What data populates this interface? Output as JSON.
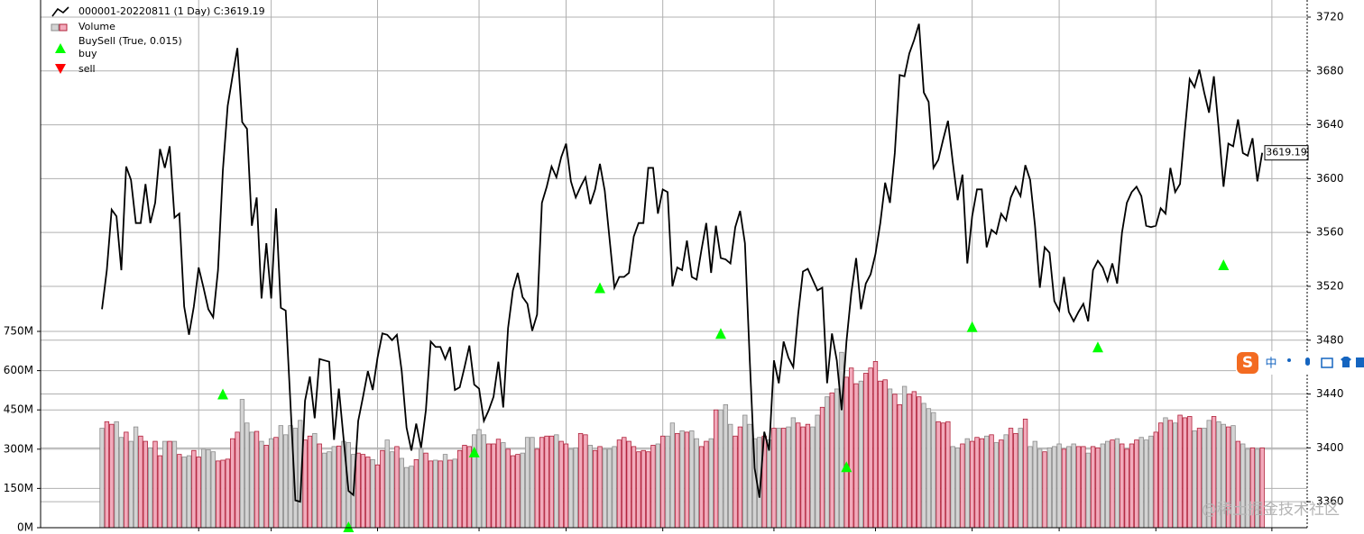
{
  "chart_data": {
    "type": "line",
    "legend_title": "BuySell (True, 0.015)",
    "xlim": [
      -12.7,
      249.3
    ],
    "xticks": [
      20,
      35,
      57,
      78,
      96,
      116,
      139,
      160,
      180,
      198,
      218,
      242
    ],
    "ylim": [
      0,
      2016
    ],
    "yticks": [
      {
        "value": 0,
        "label": "0M"
      },
      {
        "value": 150,
        "label": "150M"
      },
      {
        "value": 300,
        "label": "300M"
      },
      {
        "value": 450,
        "label": "450M"
      },
      {
        "value": 600,
        "label": "600M"
      },
      {
        "value": 750,
        "label": "750M"
      }
    ],
    "y2lim": [
      3340.7,
      3732.7
    ],
    "y2ticks": [
      3360,
      3400,
      3440,
      3480,
      3520,
      3560,
      3600,
      3640,
      3680,
      3720
    ],
    "grid": true,
    "series": [
      {
        "name": "000001-20220811 (1 Day) C:3619.19",
        "type": "line",
        "axis": "y2",
        "color": "#000000",
        "values": [
          3503,
          3532,
          3577,
          3572,
          3532,
          3609,
          3599,
          3567,
          3567,
          3596,
          3567,
          3582,
          3622,
          3608,
          3624,
          3571,
          3574,
          3505,
          3484,
          3505,
          3534,
          3519,
          3503,
          3497,
          3532,
          3606,
          3654,
          3676,
          3697,
          3642,
          3637,
          3565,
          3586,
          3511,
          3552,
          3511,
          3578,
          3504,
          3502,
          3432,
          3361,
          3360,
          3435,
          3453,
          3422,
          3466,
          3465,
          3464,
          3406,
          3444,
          3406,
          3368,
          3365,
          3420,
          3438,
          3457,
          3443,
          3467,
          3485,
          3484,
          3480,
          3484,
          3457,
          3415,
          3398,
          3418,
          3400,
          3428,
          3479,
          3475,
          3475,
          3466,
          3475,
          3443,
          3445,
          3460,
          3476,
          3447,
          3444,
          3420,
          3428,
          3438,
          3464,
          3430,
          3489,
          3517,
          3530,
          3512,
          3507,
          3487,
          3499,
          3582,
          3594,
          3609,
          3601,
          3616,
          3626,
          3598,
          3586,
          3594,
          3601,
          3581,
          3592,
          3611,
          3591,
          3555,
          3519,
          3527,
          3527,
          3530,
          3557,
          3567,
          3567,
          3608,
          3608,
          3574,
          3592,
          3590,
          3520,
          3534,
          3532,
          3554,
          3527,
          3525,
          3547,
          3567,
          3530,
          3565,
          3541,
          3540,
          3537,
          3564,
          3576,
          3552,
          3465,
          3385,
          3363,
          3412,
          3398,
          3465,
          3448,
          3479,
          3467,
          3460,
          3499,
          3531,
          3533,
          3525,
          3517,
          3519,
          3448,
          3485,
          3465,
          3428,
          3479,
          3515,
          3541,
          3503,
          3522,
          3529,
          3544,
          3567,
          3597,
          3582,
          3619,
          3677,
          3676,
          3693,
          3703,
          3715,
          3664,
          3657,
          3608,
          3614,
          3629,
          3643,
          3612,
          3584,
          3603,
          3537,
          3572,
          3592,
          3592,
          3549,
          3562,
          3559,
          3574,
          3569,
          3586,
          3594,
          3587,
          3610,
          3599,
          3565,
          3519,
          3549,
          3545,
          3509,
          3502,
          3527,
          3501,
          3494,
          3501,
          3507,
          3494,
          3532,
          3539,
          3534,
          3524,
          3537,
          3522,
          3560,
          3582,
          3590,
          3594,
          3587,
          3565,
          3564,
          3565,
          3578,
          3574,
          3608,
          3590,
          3596,
          3636,
          3674,
          3668,
          3681,
          3664,
          3649,
          3676,
          3637,
          3594,
          3626,
          3624,
          3644,
          3619,
          3617,
          3630,
          3598,
          3619.19
        ]
      },
      {
        "name": "Volume",
        "type": "bar",
        "axis": "y",
        "up_color": "#f2aabb",
        "up_edge": "#b0213a",
        "down_color": "#d3d3d3",
        "down_edge": "#8c8c8c",
        "values": [
          380,
          405,
          395,
          405,
          345,
          365,
          330,
          385,
          350,
          330,
          305,
          330,
          275,
          330,
          330,
          330,
          280,
          270,
          275,
          295,
          270,
          300,
          298,
          290,
          255,
          258,
          262,
          340,
          365,
          490,
          400,
          365,
          368,
          330,
          315,
          340,
          345,
          390,
          355,
          390,
          380,
          410,
          335,
          350,
          360,
          320,
          285,
          290,
          310,
          312,
          330,
          325,
          280,
          285,
          280,
          270,
          260,
          240,
          295,
          335,
          290,
          310,
          265,
          230,
          235,
          260,
          300,
          285,
          255,
          258,
          255,
          280,
          258,
          262,
          295,
          315,
          310,
          355,
          375,
          355,
          320,
          320,
          338,
          325,
          300,
          275,
          280,
          285,
          345,
          345,
          300,
          345,
          350,
          350,
          355,
          330,
          320,
          300,
          305,
          360,
          355,
          315,
          295,
          310,
          300,
          300,
          310,
          335,
          345,
          330,
          310,
          290,
          295,
          290,
          315,
          320,
          350,
          350,
          400,
          360,
          370,
          365,
          370,
          340,
          310,
          330,
          340,
          450,
          450,
          470,
          395,
          350,
          385,
          430,
          395,
          340,
          345,
          350,
          335,
          380,
          380,
          380,
          385,
          420,
          400,
          385,
          395,
          385,
          430,
          460,
          500,
          515,
          530,
          670,
          575,
          610,
          550,
          560,
          590,
          610,
          635,
          560,
          565,
          530,
          510,
          470,
          540,
          510,
          520,
          500,
          475,
          455,
          440,
          405,
          400,
          405,
          310,
          305,
          320,
          340,
          330,
          345,
          340,
          350,
          355,
          325,
          335,
          355,
          380,
          360,
          380,
          415,
          310,
          330,
          300,
          290,
          305,
          310,
          320,
          300,
          310,
          320,
          310,
          310,
          285,
          310,
          305,
          320,
          330,
          335,
          340,
          320,
          300,
          320,
          335,
          345,
          335,
          350,
          365,
          400,
          420,
          410,
          400,
          430,
          420,
          425,
          370,
          380,
          380,
          410,
          425,
          405,
          395,
          385,
          390,
          330,
          320,
          300,
          305,
          300,
          305
        ]
      },
      {
        "name": "buy",
        "type": "scatter",
        "axis": "y2",
        "marker": "up",
        "color": "#00ff00",
        "x": [
          25,
          51,
          77,
          103,
          128,
          154,
          180,
          206,
          232
        ],
        "values": [
          3440,
          3341.4,
          3397,
          3519,
          3485,
          3386,
          3490,
          3475,
          3536
        ]
      },
      {
        "name": "sell",
        "type": "scatter",
        "axis": "y2",
        "marker": "down",
        "color": "#ff0000",
        "x": [],
        "values": []
      }
    ]
  },
  "overlay": {
    "watermark": "@稀土掘金技术社区",
    "ime_label": "中"
  }
}
